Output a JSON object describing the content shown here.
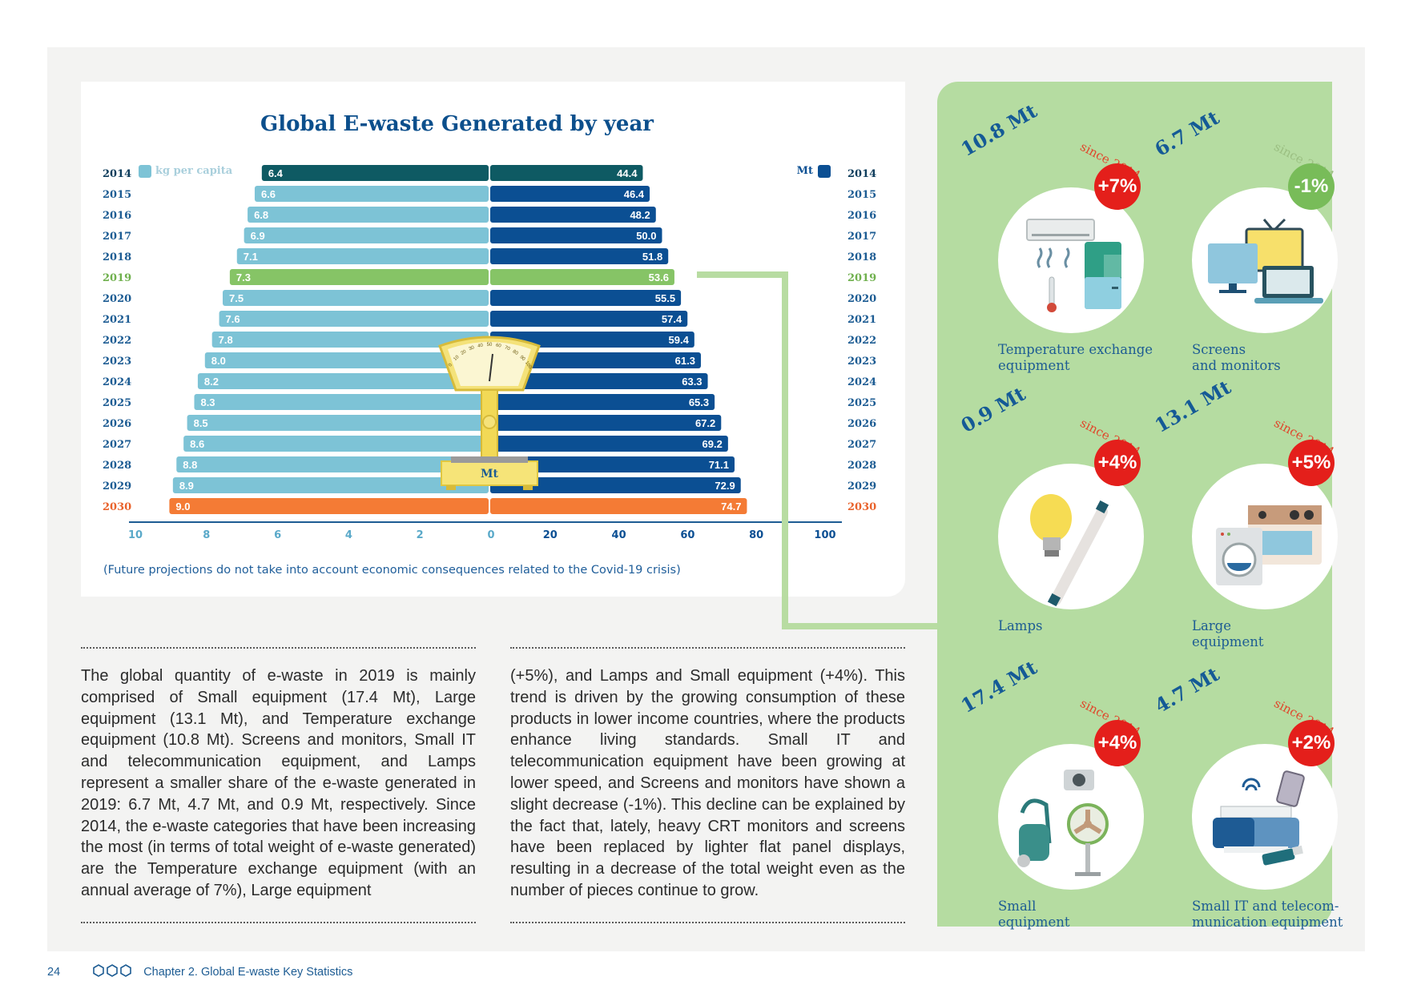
{
  "chart_data": {
    "type": "bar",
    "title": "Global E-waste Generated by year",
    "left_series_label": "kg per capita",
    "right_series_label": "Mt",
    "scale_label": "Mt",
    "categories": [
      "2014",
      "2015",
      "2016",
      "2017",
      "2018",
      "2019",
      "2020",
      "2021",
      "2022",
      "2023",
      "2024",
      "2025",
      "2026",
      "2027",
      "2028",
      "2029",
      "2030"
    ],
    "series": [
      {
        "name": "kg per capita",
        "values": [
          6.4,
          6.6,
          6.8,
          6.9,
          7.1,
          7.3,
          7.5,
          7.6,
          7.8,
          8.0,
          8.2,
          8.3,
          8.5,
          8.6,
          8.8,
          8.9,
          9.0
        ]
      },
      {
        "name": "Mt",
        "values": [
          44.4,
          46.4,
          48.2,
          50.0,
          51.8,
          53.6,
          55.5,
          57.4,
          59.4,
          61.3,
          63.3,
          65.3,
          67.2,
          69.2,
          71.1,
          72.9,
          74.7
        ]
      }
    ],
    "left_ticks": [
      "10",
      "8",
      "6",
      "4",
      "2",
      "0"
    ],
    "right_ticks": [
      "20",
      "40",
      "60",
      "80",
      "100"
    ],
    "left_range": [
      0,
      10
    ],
    "right_range": [
      0,
      100
    ],
    "highlight_year": "2019",
    "projection_end_year": "2030",
    "scale_dial_labels": [
      "0",
      "10",
      "20",
      "30",
      "40",
      "50",
      "60",
      "70",
      "80",
      "90",
      "100"
    ],
    "colors": {
      "left_bar": "#7dc3d6",
      "right_bar": "#0b4f93",
      "first_left": "#0e5a63",
      "first_right": "#0e5a63",
      "highlight": "#86c466",
      "last": "#f47b35",
      "year_color": "#1d5c93",
      "highlight_year_color": "#6fb04d",
      "last_year_color": "#e9622b"
    }
  },
  "note": "(Future projections do not take into account economic consequences related to the Covid-19 crisis)",
  "categories_panel": [
    {
      "mt": "10.8 Mt",
      "since": "since 2014",
      "change": "+7%",
      "label_lines": [
        "Temperature exchange",
        "equipment"
      ],
      "icon": "air-conditioner-fridge-thermometer-icon",
      "negative": false
    },
    {
      "mt": "6.7 Mt",
      "since": "since 2014",
      "change": "-1%",
      "label_lines": [
        "Screens",
        "and monitors"
      ],
      "icon": "monitor-tv-laptop-icon",
      "negative": true
    },
    {
      "mt": "0.9 Mt",
      "since": "since 2014",
      "change": "+4%",
      "label_lines": [
        "Lamps",
        ""
      ],
      "icon": "lightbulb-tube-icon",
      "negative": false
    },
    {
      "mt": "13.1 Mt",
      "since": "since 2014",
      "change": "+5%",
      "label_lines": [
        "Large",
        "equipment"
      ],
      "icon": "washing-machine-stove-icon",
      "negative": false
    },
    {
      "mt": "17.4 Mt",
      "since": "since 2014",
      "change": "+4%",
      "label_lines": [
        "Small",
        "equipment"
      ],
      "icon": "vacuum-fan-camera-icon",
      "negative": false
    },
    {
      "mt": "4.7 Mt",
      "since": "since 2014",
      "change": "+2%",
      "label_lines": [
        "Small IT and telecom-",
        "munication equipment"
      ],
      "icon": "printer-phone-usb-icon",
      "negative": false
    }
  ],
  "body": {
    "col1": "The global quantity of e-waste in 2019 is mainly comprised of Small equipment (17.4 Mt), Large equipment (13.1 Mt), and Temperature exchange equipment (10.8 Mt). Screens and monitors, Small IT and telecommunication equipment, and Lamps represent a smaller share of the e-waste generated in 2019: 6.7 Mt, 4.7 Mt, and 0.9 Mt, respectively. Since 2014, the e-waste categories that have been increasing the most (in terms of total weight of e-waste generated) are the Temperature exchange equipment (with an annual average of 7%), Large equipment",
    "col2": "(+5%), and Lamps and Small equipment (+4%). This trend is driven by the growing consumption of these products in lower income countries, where the products enhance living standards. Small IT and telecommunication equipment have been growing at lower speed, and Screens and monitors have shown a slight decrease (-1%). This decline can be explained by the fact that, lately, heavy CRT monitors and screens have been replaced by lighter flat panel displays, resulting in a decrease of the total weight even as the number of pieces continue to grow."
  },
  "footer": {
    "page_number": "24",
    "chapter": "Chapter 2. Global E-waste Key Statistics"
  }
}
